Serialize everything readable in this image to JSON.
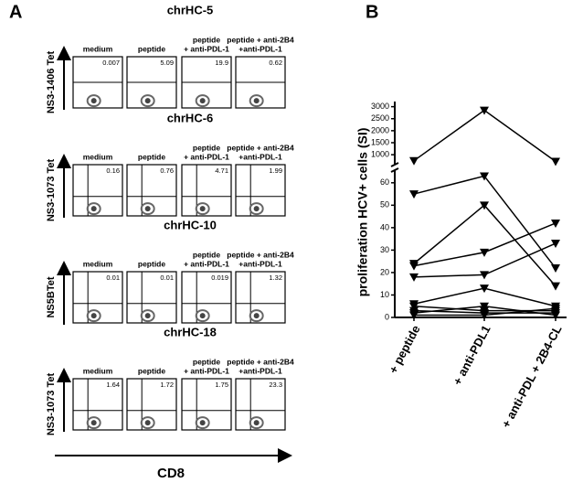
{
  "panel_a": {
    "letter": "A",
    "x_label": "CD8",
    "columns": [
      [
        "medium"
      ],
      [
        "peptide"
      ],
      [
        "peptide",
        "+ anti-PDL-1"
      ],
      [
        "peptide + anti-2B4",
        "+anti-PDL-1"
      ]
    ],
    "rows": [
      {
        "title": "chrHC-5",
        "y_label": "NS3-1406 Tet",
        "percents": [
          0.007,
          5.09,
          19.9,
          0.62
        ]
      },
      {
        "title": "chrHC-6",
        "y_label": "NS3-1073 Tet",
        "percents": [
          0.16,
          0.76,
          4.71,
          1.99
        ]
      },
      {
        "title": "chrHC-10",
        "y_label": "NS5BTet",
        "percents": [
          0.01,
          0.01,
          0.019,
          1.32
        ]
      },
      {
        "title": "chrHC-18",
        "y_label": "NS3-1073 Tet",
        "percents": [
          1.64,
          1.72,
          1.75,
          23.3
        ]
      }
    ]
  },
  "chart_data": {
    "type": "line",
    "letter": "B",
    "y_label": "proliferation HCV+ cells (SI)",
    "categories": [
      "+ peptide",
      "+ anti-PDL1",
      "+ anti-PDL + 2B4-CL"
    ],
    "ylim": [
      0,
      64
    ],
    "yticks": [
      0,
      10,
      20,
      30,
      40,
      50,
      60
    ],
    "ylim_upper": [
      700,
      3100
    ],
    "yticks_upper": [
      1000,
      1500,
      2000,
      2500,
      3000
    ],
    "color": "#000000",
    "series": [
      {
        "values": [
          750,
          2850,
          720
        ]
      },
      {
        "values": [
          55,
          63,
          22
        ]
      },
      {
        "values": [
          24,
          50,
          14
        ]
      },
      {
        "values": [
          23,
          29,
          42
        ]
      },
      {
        "values": [
          18,
          19,
          33
        ]
      },
      {
        "values": [
          6,
          13,
          5
        ]
      },
      {
        "values": [
          5,
          3,
          3
        ]
      },
      {
        "values": [
          3,
          2,
          2
        ]
      },
      {
        "values": [
          2,
          5,
          1
        ]
      },
      {
        "values": [
          1,
          1,
          4
        ]
      }
    ]
  }
}
